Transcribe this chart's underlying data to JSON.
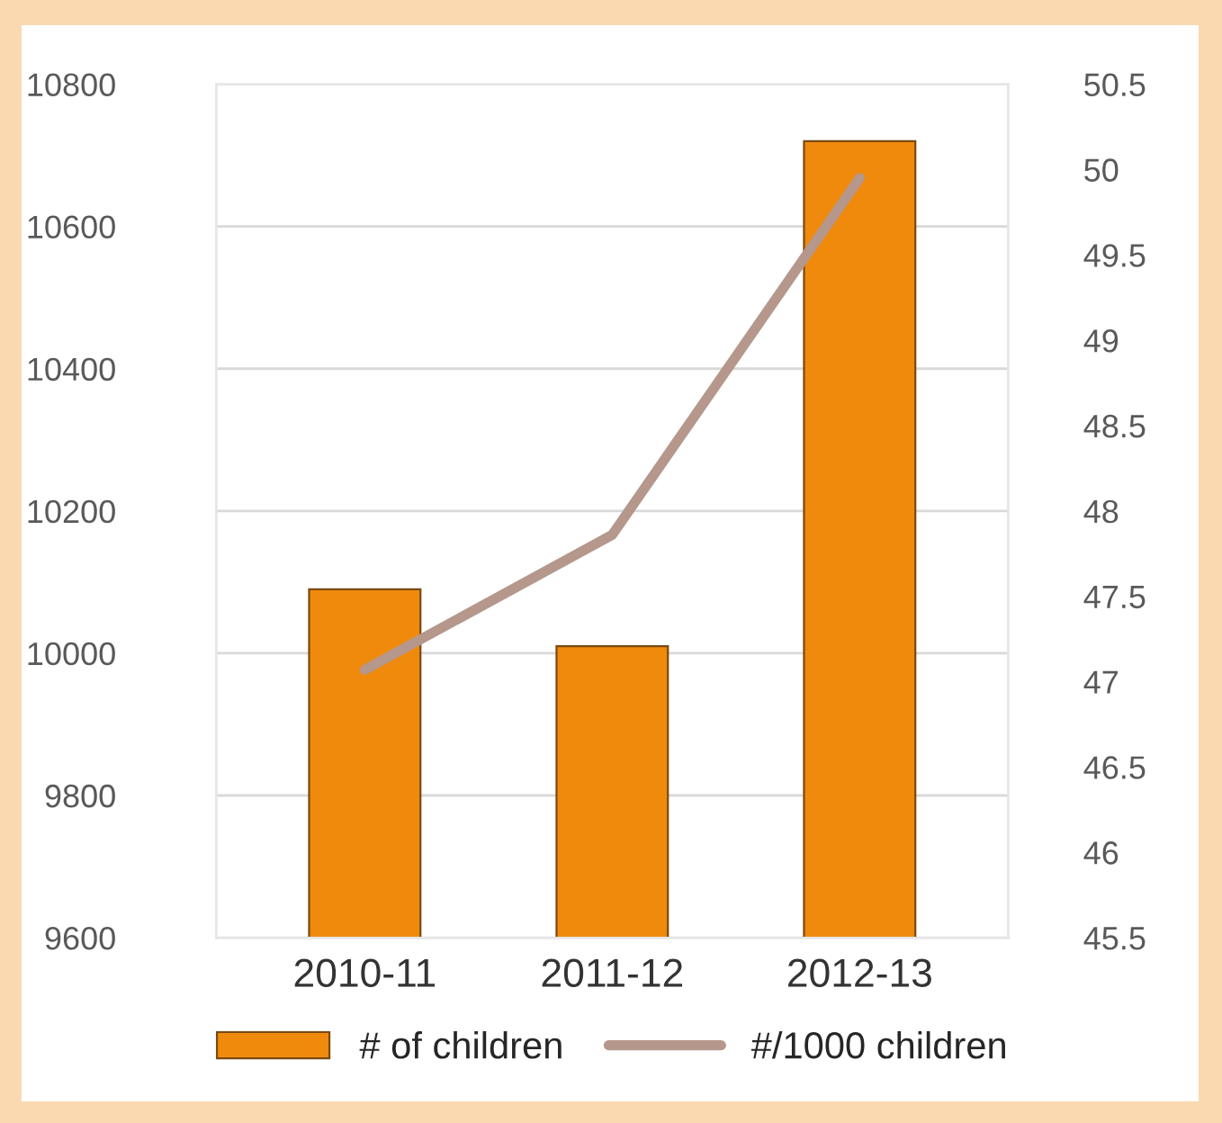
{
  "chart_data": {
    "type": "bar",
    "categories": [
      "2010-11",
      "2011-12",
      "2012-13"
    ],
    "series": [
      {
        "name": "# of children",
        "color": "#f08a0c",
        "values": [
          10090,
          10010,
          10720
        ]
      },
      {
        "name": "#/1000 children",
        "type": "line",
        "axis": "y2",
        "color": "#b5978c",
        "values": [
          47.07,
          47.86,
          49.95
        ]
      }
    ],
    "ylim": [
      9600,
      10800
    ],
    "yticks": [
      9600,
      9800,
      10000,
      10200,
      10400,
      10600,
      10800
    ],
    "y2lim": [
      45.5,
      50.5
    ],
    "y2ticks": [
      45.5,
      46,
      46.5,
      47,
      47.5,
      48,
      48.5,
      49,
      49.5,
      50,
      50.5
    ],
    "grid": "y",
    "legend": "bottom",
    "marker": "none",
    "line_style": "solid"
  }
}
